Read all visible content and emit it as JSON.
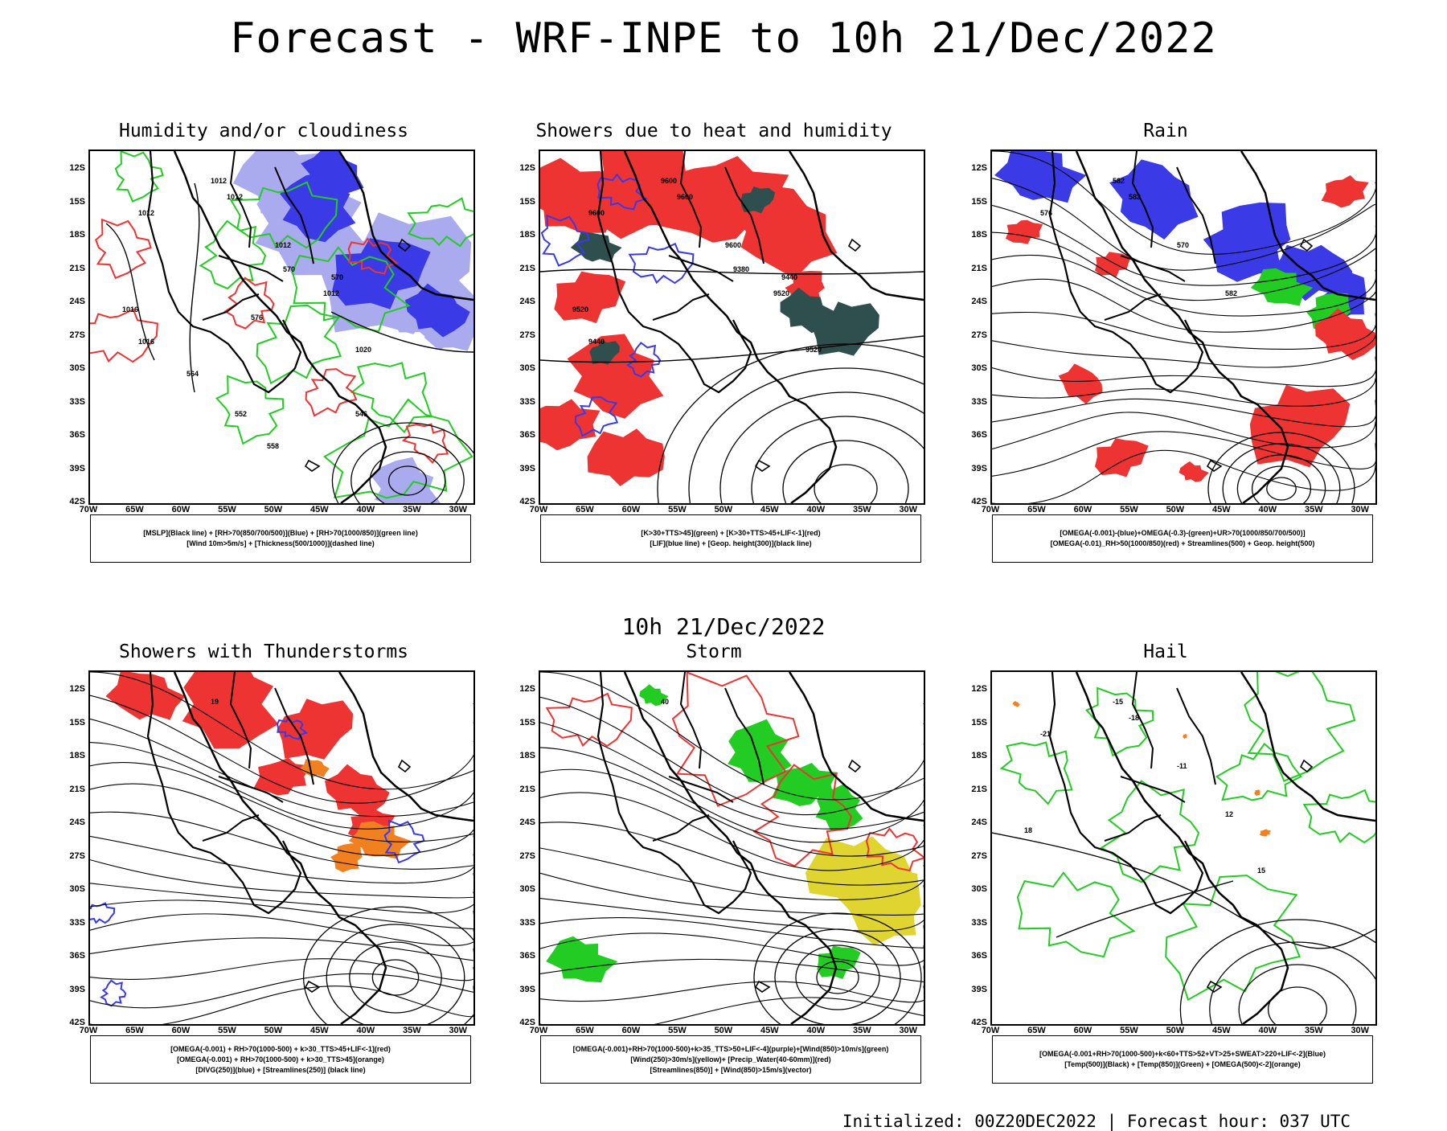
{
  "main_title": "Forecast - WRF-INPE to 10h 21/Dec/2022",
  "mid_title": "10h 21/Dec/2022",
  "footer": "Initialized: 00Z20DEC2022 | Forecast hour: 037 UTC",
  "lat_labels": [
    "12S",
    "15S",
    "18S",
    "21S",
    "24S",
    "27S",
    "30S",
    "33S",
    "36S",
    "39S",
    "42S"
  ],
  "lon_labels": [
    "70W",
    "65W",
    "60W",
    "55W",
    "50W",
    "45W",
    "40W",
    "35W",
    "30W"
  ],
  "colors": {
    "black": "#000000",
    "blue": "#3a3ae6",
    "lightblue": "#aaaaee",
    "green": "#22cc22",
    "red": "#ee3333",
    "orange": "#f08020",
    "yellow": "#e0d430",
    "teal": "#2f4f4f"
  },
  "panels": [
    {
      "title": "Humidity and/or cloudiness",
      "legend": [
        "[MSLP](Black line) + [RH>70(850/700/500)](Blue) + [RH>70(1000/850)](green line)",
        "[Wind 10m>5m/s] + [Thickness(500/1000)](dashed line)"
      ],
      "contour_labels": [
        "1012",
        "1012",
        "1012",
        "1012",
        "1012",
        "1020",
        "1016",
        "1016",
        "570",
        "570",
        "576",
        "564",
        "552",
        "558",
        "546"
      ]
    },
    {
      "title": "Showers due to heat and humidity",
      "legend": [
        "[K>30+TTS>45](green) + [K>30+TTS>45+LIF<-1](red)",
        "[LIF](blue line) + [Geop. height(300)](black line)"
      ],
      "contour_labels": [
        "9600",
        "9600",
        "9600",
        "9600",
        "9520",
        "9520",
        "9520",
        "9440",
        "9380",
        "9440"
      ]
    },
    {
      "title": "Rain",
      "legend": [
        "[OMEGA(-0.001)-(blue)+OMEGA(-0.3)-(green)+UR>70(1000/850/700/500)]",
        "[OMEGA(-0.01)_RH>50(1000/850)(red) + Streamlines(500) + Geop. height(500)"
      ],
      "contour_labels": [
        "582",
        "582",
        "576",
        "570",
        "582"
      ]
    },
    {
      "title": "Showers with Thunderstorms",
      "legend": [
        "[OMEGA(-0.001) + RH>70(1000-500) + k>30_TTS>45+LIF<-1](red)",
        "[OMEGA(-0.001) + RH>70(1000-500) + k>30_TTS>45](orange)",
        "[DIVG(250)](blue) + [Streamlines(250)] (black line)"
      ],
      "contour_labels": [
        "19"
      ]
    },
    {
      "title": "Storm",
      "legend": [
        "[OMEGA(-0.001)+RH>70(1000-500)+k>35_TTS>50+LIF<-4](purple)+[Wind(850)>10m/s](green)",
        "[Wind(250)>30m/s](yellow)+ [Precip_Water(40-60mm)](red)",
        "[Streamlines(850)] + [Wind(850)>15m/s](vector)"
      ],
      "contour_labels": [
        "40"
      ]
    },
    {
      "title": "Hail",
      "legend": [
        "[OMEGA(-0.001+RH>70(1000-500)+k<60+TTS>52+VT>25+SWEAT>220+LIF<-2](Blue)",
        "[Temp(500)](Black) + [Temp(850)](Green) + [OMEGA(500)<-2](orange)"
      ],
      "contour_labels": [
        "-15",
        "-18",
        "-21",
        "-11",
        "12",
        "15",
        "18"
      ]
    }
  ]
}
